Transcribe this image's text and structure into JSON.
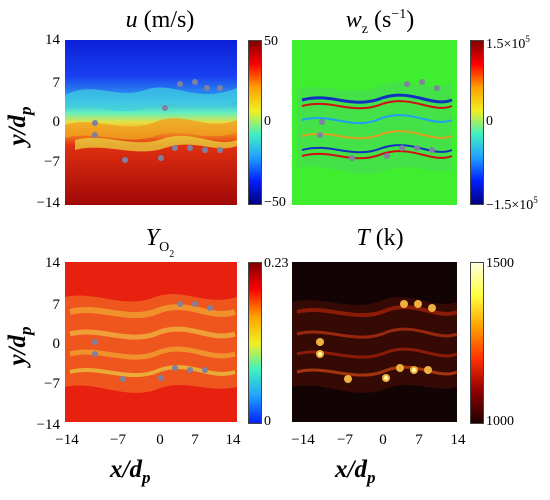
{
  "panels": [
    {
      "key": "u",
      "title_symbol": "u",
      "title_unit": "(m/s)",
      "colorbar": {
        "max": "50",
        "mid": "0",
        "min": "−50"
      },
      "colormap": "jet"
    },
    {
      "key": "wz",
      "title_symbol": "w",
      "title_sub": "z",
      "title_unit": "(s",
      "title_unit_sup": "−1",
      "title_unit_close": ")",
      "colorbar": {
        "max": "1.5×10",
        "max_exp": "5",
        "mid": "0",
        "min": "−1.5×10",
        "min_exp": "5"
      },
      "colormap": "jet"
    },
    {
      "key": "yo2",
      "title_symbol": "Y",
      "title_sub": "O",
      "title_sub_sub": "2",
      "colorbar": {
        "max": "0.23",
        "min": "0"
      },
      "colormap": "jet"
    },
    {
      "key": "t",
      "title_symbol": "T",
      "title_unit": "(k)",
      "colorbar": {
        "max": "1500",
        "min": "1000"
      },
      "colormap": "hot"
    }
  ],
  "axes": {
    "y_label": "y/d",
    "y_label_sub": "p",
    "x_label": "x/d",
    "x_label_sub": "p",
    "y_ticks": [
      "14",
      "7",
      "0",
      "−7",
      "−14"
    ],
    "x_ticks": [
      "−14",
      "−7",
      "0",
      "7",
      "14"
    ]
  },
  "colors": {
    "u_top": "#1030e0",
    "u_bottom": "#b01010",
    "wz_background": "#40ee30",
    "o2_background": "#e82010",
    "t_background": "#120404"
  }
}
